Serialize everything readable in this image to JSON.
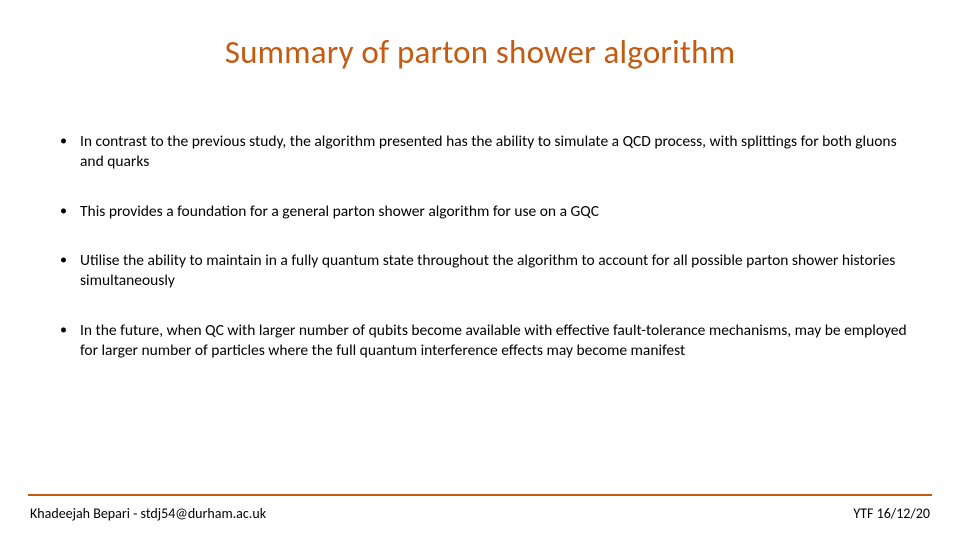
{
  "title": "Summary of parton shower algorithm",
  "title_color": "#c55a11",
  "title_fontsize": 33,
  "bullets": [
    "In contrast to the previous study, the algorithm presented has the ability to simulate a QCD process, with splittings for both gluons and quarks",
    "This provides a foundation for a general parton shower algorithm for use on a GQC",
    "Utilise the ability to maintain in a fully quantum state throughout the algorithm to account for all possible parton shower histories simultaneously",
    "In the future, when QC with larger number of qubits become available with effective fault-tolerance mechanisms, may be employed for larger number of particles where the full quantum interference effects may become manifest"
  ],
  "bullet_fontsize": 15.5,
  "bullet_color": "#000000",
  "footer": {
    "left": "Khadeejah Bepari - stdj54@durham.ac.uk",
    "right": "YTF 16/12/20",
    "line_color": "#c55a11",
    "fontsize": 14
  },
  "background_color": "#ffffff",
  "slide_width": 960,
  "slide_height": 540
}
